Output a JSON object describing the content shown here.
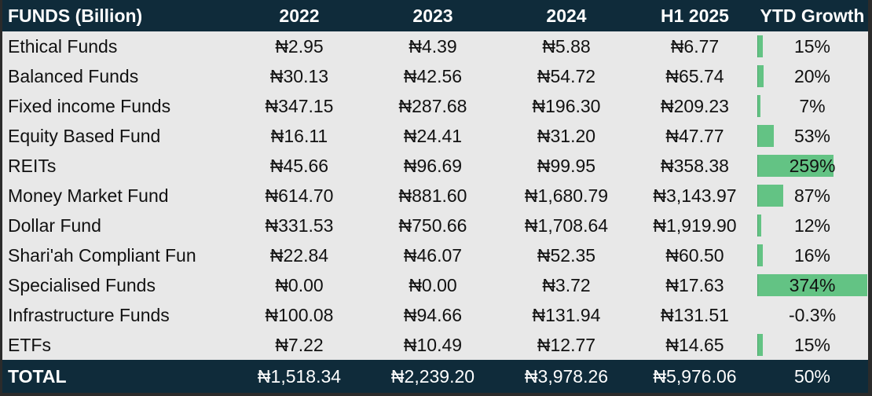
{
  "table": {
    "headers": [
      "FUNDS (Billion)",
      "2022",
      "2023",
      "2024",
      "H1 2025",
      "YTD Growth"
    ],
    "rows": [
      {
        "name": "Ethical Funds",
        "y2022": "₦2.95",
        "y2023": "₦4.39",
        "y2024": "₦5.88",
        "h1_2025": "₦6.77",
        "ytd": "15%",
        "ytd_value": 15
      },
      {
        "name": "Balanced Funds",
        "y2022": "₦30.13",
        "y2023": "₦42.56",
        "y2024": "₦54.72",
        "h1_2025": "₦65.74",
        "ytd": "20%",
        "ytd_value": 20
      },
      {
        "name": "Fixed income Funds",
        "y2022": "₦347.15",
        "y2023": "₦287.68",
        "y2024": "₦196.30",
        "h1_2025": "₦209.23",
        "ytd": "7%",
        "ytd_value": 7
      },
      {
        "name": "Equity Based Fund",
        "y2022": "₦16.11",
        "y2023": "₦24.41",
        "y2024": "₦31.20",
        "h1_2025": "₦47.77",
        "ytd": "53%",
        "ytd_value": 53
      },
      {
        "name": "REITs",
        "y2022": "₦45.66",
        "y2023": "₦96.69",
        "y2024": "₦99.95",
        "h1_2025": "₦358.38",
        "ytd": "259%",
        "ytd_value": 259
      },
      {
        "name": "Money Market Fund",
        "y2022": "₦614.70",
        "y2023": "₦881.60",
        "y2024": "₦1,680.79",
        "h1_2025": "₦3,143.97",
        "ytd": "87%",
        "ytd_value": 87
      },
      {
        "name": "Dollar Fund",
        "y2022": "₦331.53",
        "y2023": "₦750.66",
        "y2024": "₦1,708.64",
        "h1_2025": "₦1,919.90",
        "ytd": "12%",
        "ytd_value": 12
      },
      {
        "name": "Shari'ah Compliant Fun",
        "y2022": "₦22.84",
        "y2023": "₦46.07",
        "y2024": "₦52.35",
        "h1_2025": "₦60.50",
        "ytd": "16%",
        "ytd_value": 16
      },
      {
        "name": "Specialised Funds",
        "y2022": "₦0.00",
        "y2023": "₦0.00",
        "y2024": "₦3.72",
        "h1_2025": "₦17.63",
        "ytd": "374%",
        "ytd_value": 374
      },
      {
        "name": "Infrastructure Funds",
        "y2022": "₦100.08",
        "y2023": "₦94.66",
        "y2024": "₦131.94",
        "h1_2025": "₦131.51",
        "ytd": "-0.3%",
        "ytd_value": -0.3
      },
      {
        "name": "ETFs",
        "y2022": "₦7.22",
        "y2023": "₦10.49",
        "y2024": "₦12.77",
        "h1_2025": "₦14.65",
        "ytd": "15%",
        "ytd_value": 15
      }
    ],
    "total": {
      "name": "TOTAL",
      "y2022": "₦1,518.34",
      "y2023": "₦2,239.20",
      "y2024": "₦3,978.26",
      "h1_2025": "₦5,976.06",
      "ytd": "50%"
    },
    "ytd_bar_max": 374
  },
  "colors": {
    "header_bg": "#0f2b3a",
    "body_bg": "#e8e8e8",
    "databar": "#63c384"
  }
}
